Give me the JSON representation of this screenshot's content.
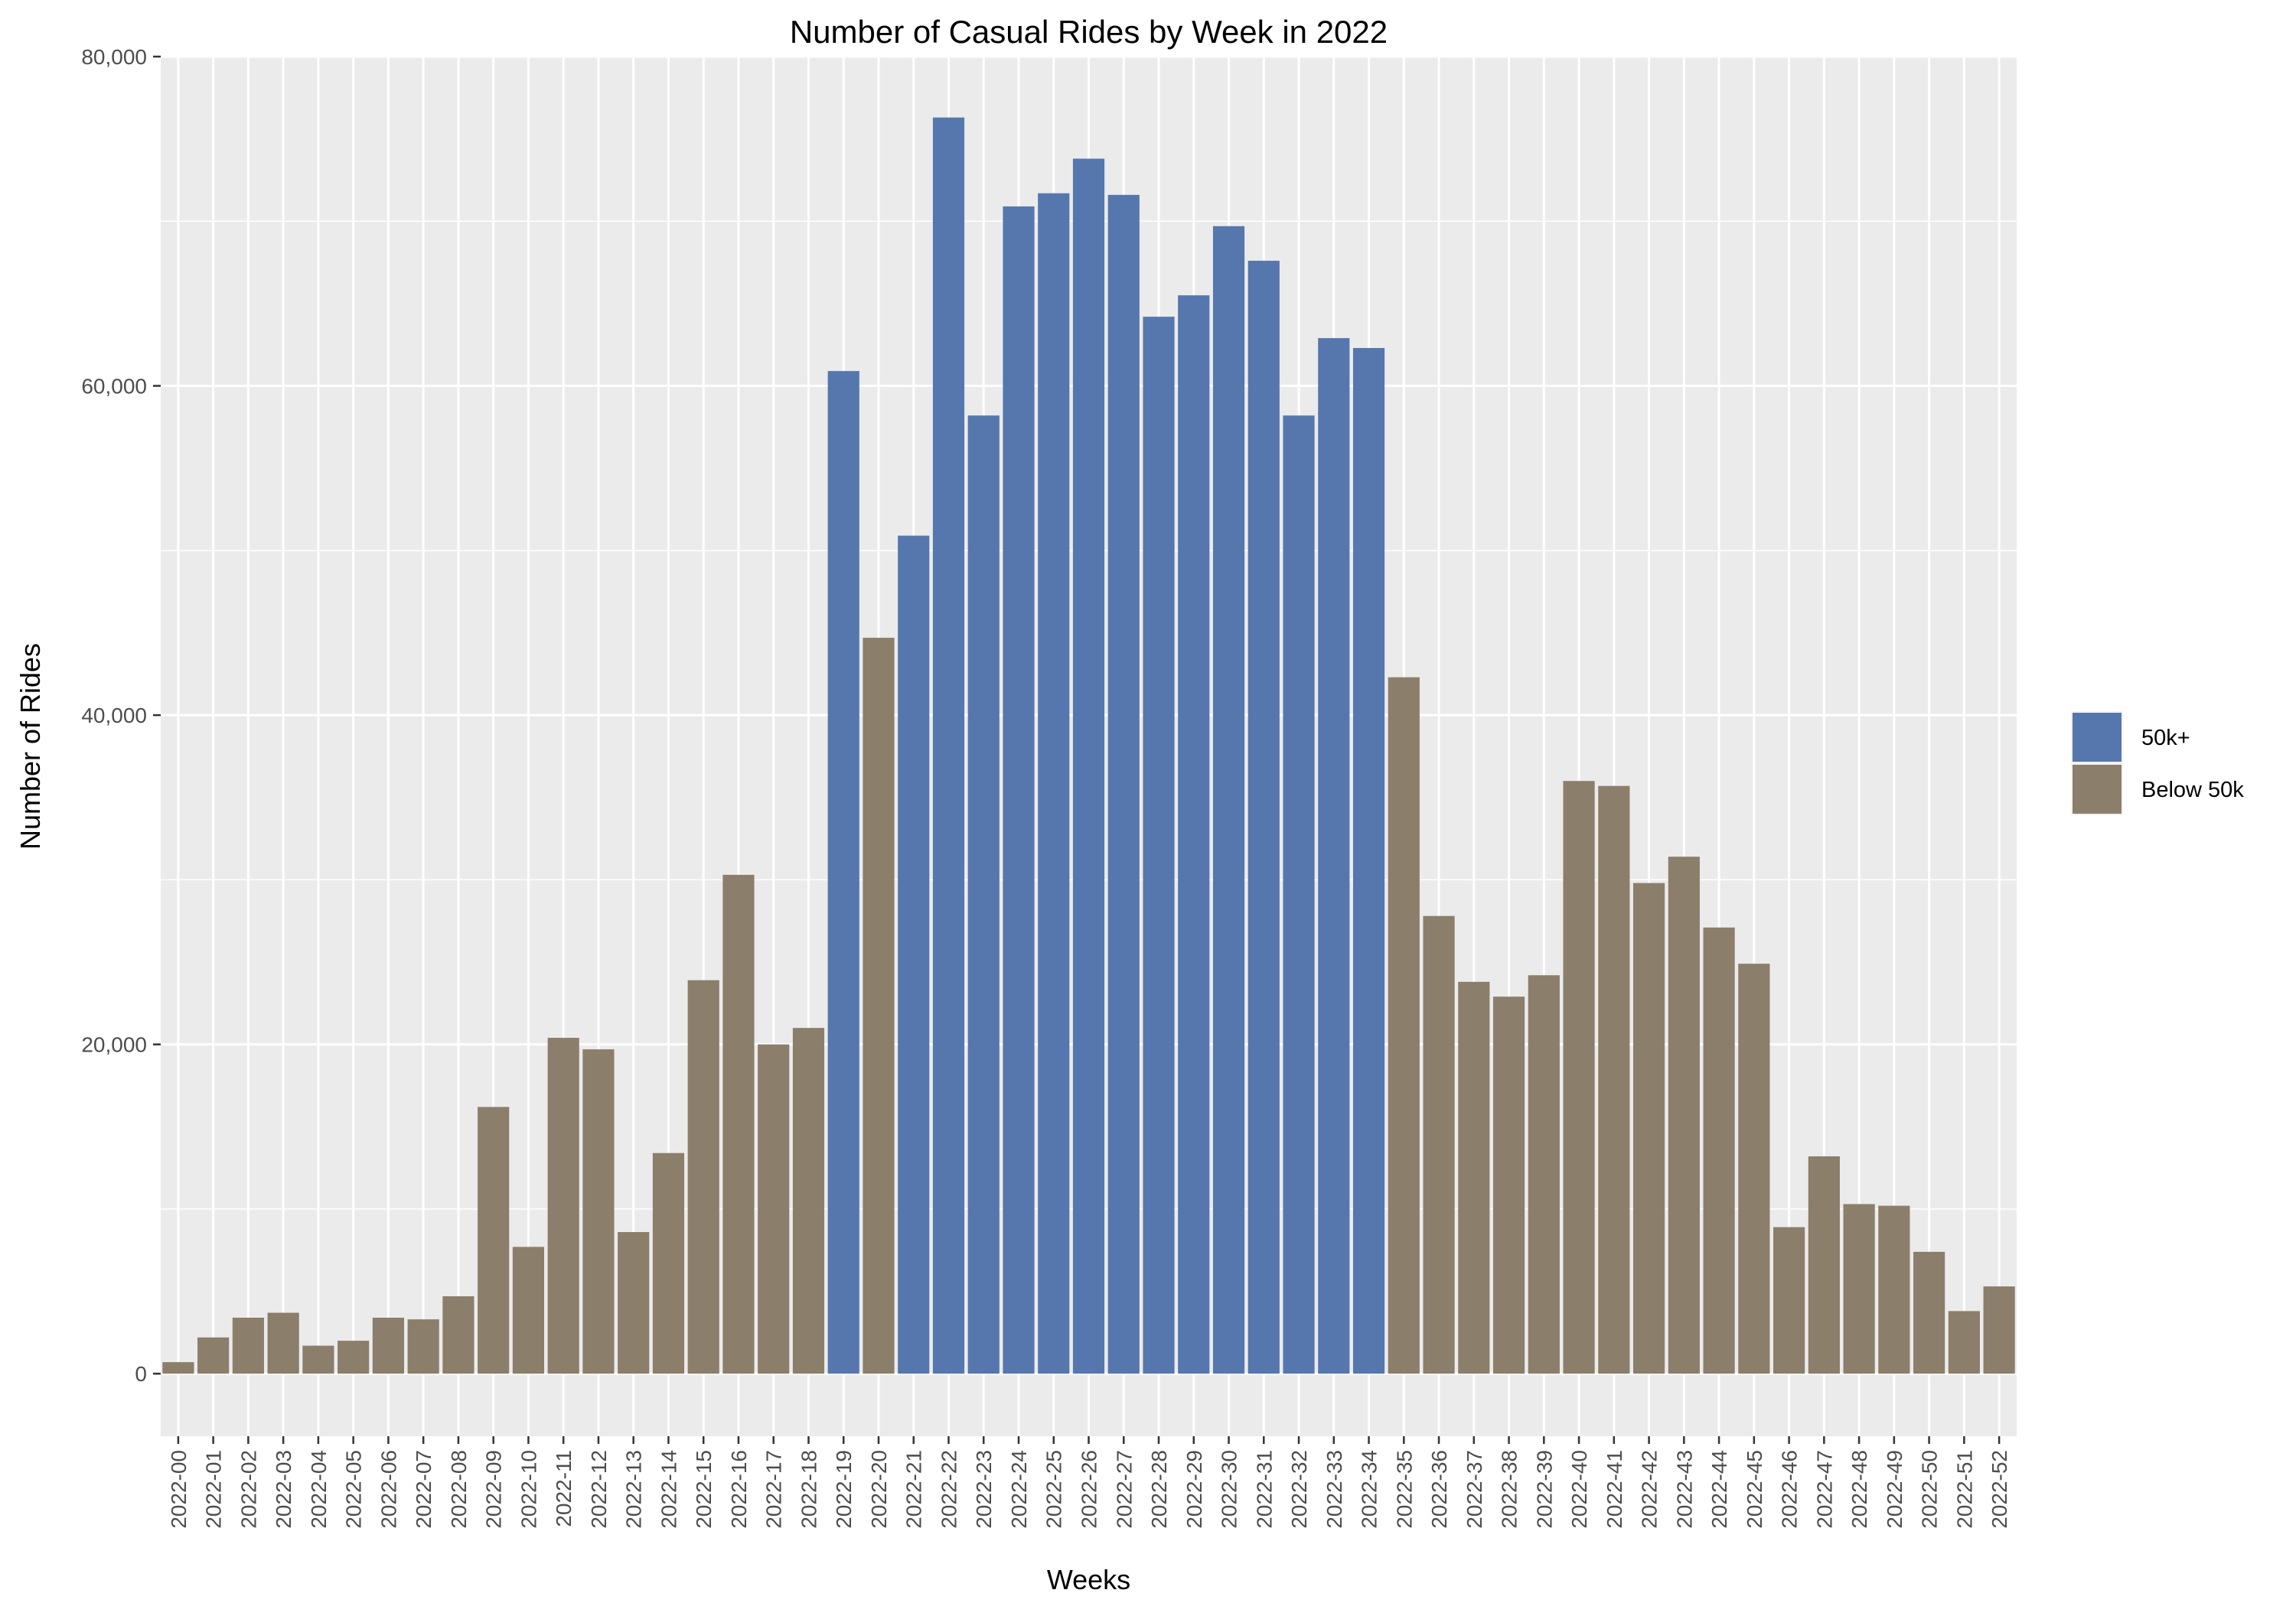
{
  "chart_data": {
    "type": "bar",
    "title": "Number of Casual Rides by Week in 2022",
    "xlabel": "Weeks",
    "ylabel": "Number of Rides",
    "ylim": [
      -3800,
      80000
    ],
    "yticks": [
      0,
      20000,
      40000,
      60000,
      80000
    ],
    "ytick_labels": [
      "0",
      "20,000",
      "40,000",
      "60,000",
      "80,000"
    ],
    "grid": true,
    "legend_position": "right",
    "categories": [
      "2022-00",
      "2022-01",
      "2022-02",
      "2022-03",
      "2022-04",
      "2022-05",
      "2022-06",
      "2022-07",
      "2022-08",
      "2022-09",
      "2022-10",
      "2022-11",
      "2022-12",
      "2022-13",
      "2022-14",
      "2022-15",
      "2022-16",
      "2022-17",
      "2022-18",
      "2022-19",
      "2022-20",
      "2022-21",
      "2022-22",
      "2022-23",
      "2022-24",
      "2022-25",
      "2022-26",
      "2022-27",
      "2022-28",
      "2022-29",
      "2022-30",
      "2022-31",
      "2022-32",
      "2022-33",
      "2022-34",
      "2022-35",
      "2022-36",
      "2022-37",
      "2022-38",
      "2022-39",
      "2022-40",
      "2022-41",
      "2022-42",
      "2022-43",
      "2022-44",
      "2022-45",
      "2022-46",
      "2022-47",
      "2022-48",
      "2022-49",
      "2022-50",
      "2022-51",
      "2022-52"
    ],
    "values": [
      700,
      2200,
      3400,
      3700,
      1700,
      2000,
      3400,
      3300,
      4700,
      16200,
      7700,
      20400,
      19700,
      8600,
      13400,
      23900,
      30300,
      20000,
      21000,
      60900,
      44700,
      50900,
      76300,
      58200,
      70900,
      71700,
      73800,
      71600,
      64200,
      65500,
      69700,
      67600,
      58200,
      62900,
      62300,
      42300,
      27800,
      23800,
      22900,
      24200,
      36000,
      35700,
      29800,
      31400,
      27100,
      24900,
      8900,
      13200,
      10300,
      10200,
      7400,
      3800,
      5300
    ],
    "groups": [
      "Below 50k",
      "Below 50k",
      "Below 50k",
      "Below 50k",
      "Below 50k",
      "Below 50k",
      "Below 50k",
      "Below 50k",
      "Below 50k",
      "Below 50k",
      "Below 50k",
      "Below 50k",
      "Below 50k",
      "Below 50k",
      "Below 50k",
      "Below 50k",
      "Below 50k",
      "Below 50k",
      "Below 50k",
      "50k+",
      "Below 50k",
      "50k+",
      "50k+",
      "50k+",
      "50k+",
      "50k+",
      "50k+",
      "50k+",
      "50k+",
      "50k+",
      "50k+",
      "50k+",
      "50k+",
      "50k+",
      "50k+",
      "Below 50k",
      "Below 50k",
      "Below 50k",
      "Below 50k",
      "Below 50k",
      "Below 50k",
      "Below 50k",
      "Below 50k",
      "Below 50k",
      "Below 50k",
      "Below 50k",
      "Below 50k",
      "Below 50k",
      "Below 50k",
      "Below 50k",
      "Below 50k",
      "Below 50k",
      "Below 50k"
    ],
    "legend": [
      {
        "label": "50k+",
        "color": "#5577ae"
      },
      {
        "label": "Below 50k",
        "color": "#8b7e6b"
      }
    ],
    "panel_color": "#ebebeb",
    "grid_color": "#ffffff"
  }
}
